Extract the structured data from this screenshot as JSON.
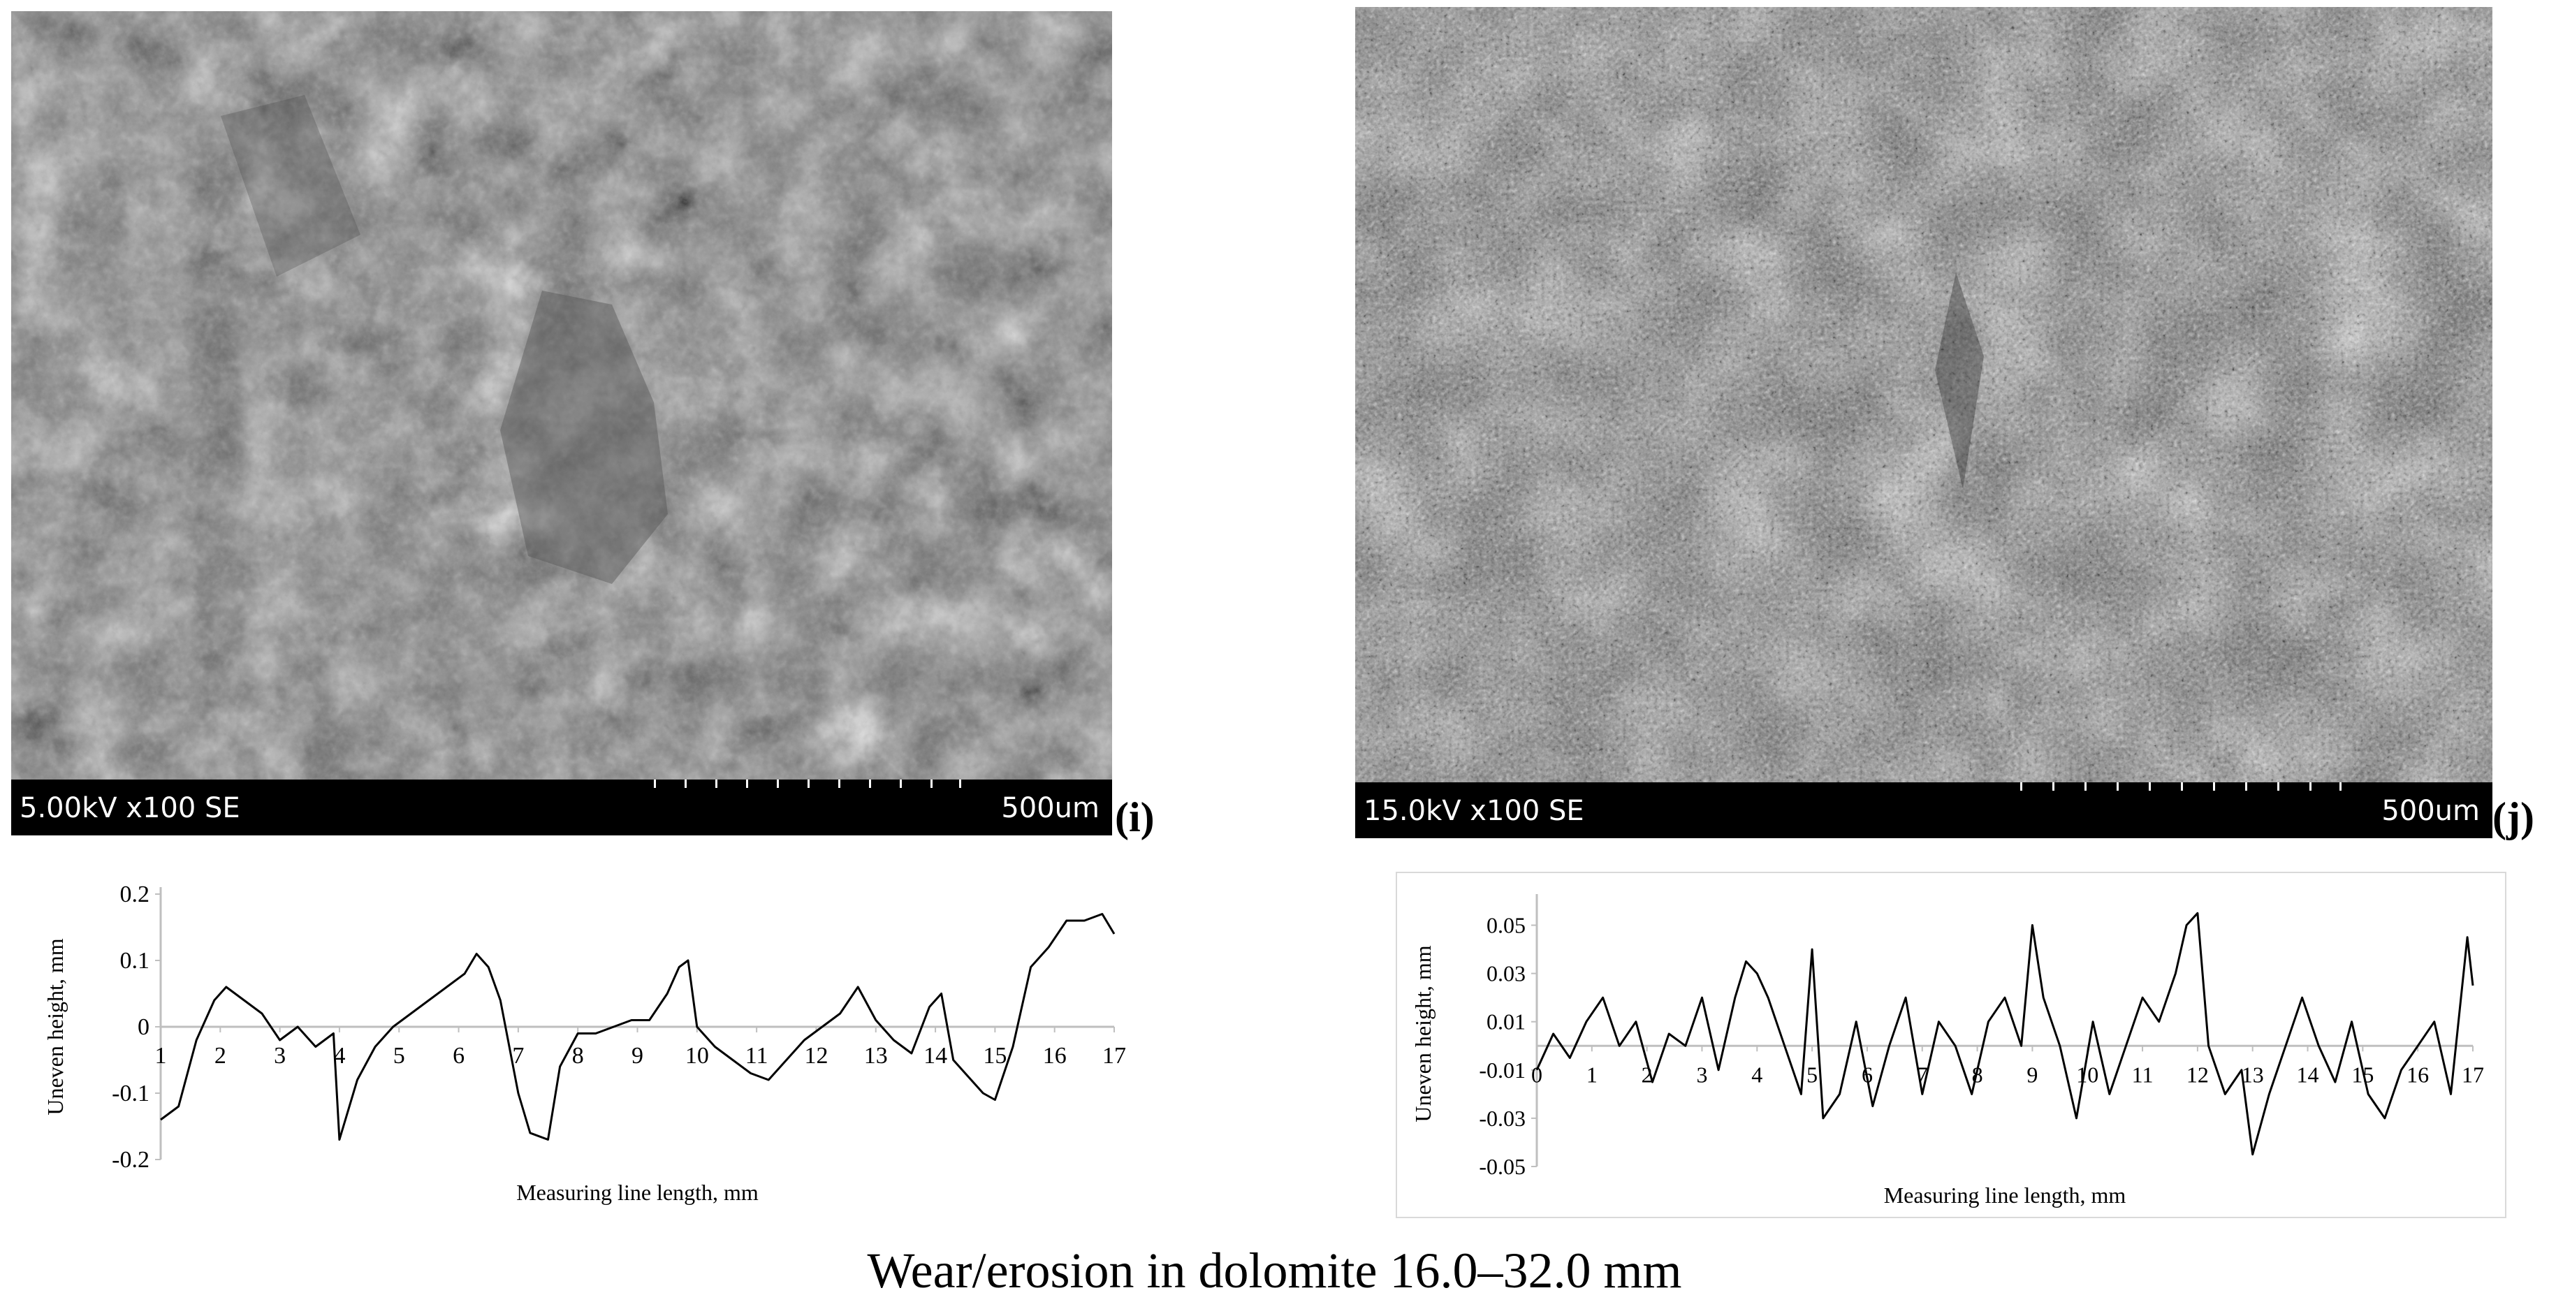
{
  "panels": [
    {
      "id": "i",
      "label_text": "(i)",
      "sem": {
        "params": "5.00kV x100 SE",
        "scale": "500um"
      },
      "chart_data": {
        "type": "line",
        "ylabel": "Uneven height, mm",
        "xlabel": "Measuring line length, mm",
        "xlim": [
          1,
          17
        ],
        "ylim": [
          -0.2,
          0.2
        ],
        "xticks": [
          1,
          2,
          3,
          4,
          5,
          6,
          7,
          8,
          9,
          10,
          11,
          12,
          13,
          14,
          15,
          16,
          17
        ],
        "yticks": [
          -0.2,
          -0.1,
          0,
          0.1,
          0.2
        ],
        "ytick_labels": [
          "-0.2",
          "-0.1",
          "0",
          "0.1",
          "0.2"
        ],
        "grid": false,
        "series": [
          {
            "x": [
              1.0,
              1.3,
              1.6,
              1.9,
              2.1,
              2.4,
              2.7,
              3.0,
              3.3,
              3.6,
              3.9,
              4.0,
              4.3,
              4.6,
              4.9,
              5.2,
              5.5,
              5.8,
              6.1,
              6.3,
              6.5,
              6.7,
              7.0,
              7.2,
              7.5,
              7.7,
              8.0,
              8.3,
              8.6,
              8.9,
              9.2,
              9.5,
              9.7,
              9.85,
              10.0,
              10.3,
              10.6,
              10.9,
              11.2,
              11.5,
              11.8,
              12.1,
              12.4,
              12.7,
              13.0,
              13.3,
              13.6,
              13.9,
              14.1,
              14.3,
              14.5,
              14.8,
              15.0,
              15.3,
              15.6,
              15.9,
              16.2,
              16.5,
              16.8,
              17.0
            ],
            "y": [
              -0.14,
              -0.12,
              -0.02,
              0.04,
              0.06,
              0.04,
              0.02,
              -0.02,
              0.0,
              -0.03,
              -0.01,
              -0.17,
              -0.08,
              -0.03,
              0.0,
              0.02,
              0.04,
              0.06,
              0.08,
              0.11,
              0.09,
              0.04,
              -0.1,
              -0.16,
              -0.17,
              -0.06,
              -0.01,
              -0.01,
              0.0,
              0.01,
              0.01,
              0.05,
              0.09,
              0.1,
              0.0,
              -0.03,
              -0.05,
              -0.07,
              -0.08,
              -0.05,
              -0.02,
              0.0,
              0.02,
              0.06,
              0.01,
              -0.02,
              -0.04,
              0.03,
              0.05,
              -0.05,
              -0.07,
              -0.1,
              -0.11,
              -0.03,
              0.09,
              0.12,
              0.16,
              0.16,
              0.17,
              0.14
            ]
          }
        ]
      }
    },
    {
      "id": "j",
      "label_text": "(j)",
      "sem": {
        "params": "15.0kV x100 SE",
        "scale": "500um"
      },
      "chart_data": {
        "type": "line",
        "ylabel": "Uneven height, mm",
        "xlabel": "Measuring line length, mm",
        "xlim": [
          0,
          17
        ],
        "ylim": [
          -0.05,
          0.06
        ],
        "xticks": [
          0,
          1,
          2,
          3,
          4,
          5,
          6,
          7,
          8,
          9,
          10,
          11,
          12,
          13,
          14,
          15,
          16,
          17
        ],
        "yticks": [
          -0.05,
          -0.03,
          -0.01,
          0.01,
          0.03,
          0.05
        ],
        "ytick_labels": [
          "-0.05",
          "-0.03",
          "-0.01",
          "0.01",
          "0.03",
          "0.05"
        ],
        "grid": false,
        "series": [
          {
            "x": [
              0.0,
              0.3,
              0.6,
              0.9,
              1.2,
              1.5,
              1.8,
              2.1,
              2.4,
              2.7,
              3.0,
              3.3,
              3.6,
              3.8,
              4.0,
              4.2,
              4.5,
              4.8,
              5.0,
              5.2,
              5.5,
              5.8,
              6.1,
              6.4,
              6.7,
              7.0,
              7.3,
              7.6,
              7.9,
              8.2,
              8.5,
              8.8,
              9.0,
              9.2,
              9.5,
              9.8,
              10.1,
              10.4,
              10.7,
              11.0,
              11.3,
              11.6,
              11.8,
              12.0,
              12.2,
              12.5,
              12.8,
              13.0,
              13.3,
              13.6,
              13.9,
              14.2,
              14.5,
              14.8,
              15.1,
              15.4,
              15.7,
              16.0,
              16.3,
              16.6,
              16.9,
              17.0
            ],
            "y": [
              -0.01,
              0.005,
              -0.005,
              0.01,
              0.02,
              0.0,
              0.01,
              -0.015,
              0.005,
              0.0,
              0.02,
              -0.01,
              0.02,
              0.035,
              0.03,
              0.02,
              0.0,
              -0.02,
              0.04,
              -0.03,
              -0.02,
              0.01,
              -0.025,
              0.0,
              0.02,
              -0.02,
              0.01,
              0.0,
              -0.02,
              0.01,
              0.02,
              0.0,
              0.05,
              0.02,
              0.0,
              -0.03,
              0.01,
              -0.02,
              0.0,
              0.02,
              0.01,
              0.03,
              0.05,
              0.055,
              0.0,
              -0.02,
              -0.01,
              -0.045,
              -0.02,
              0.0,
              0.02,
              0.0,
              -0.015,
              0.01,
              -0.02,
              -0.03,
              -0.01,
              0.0,
              0.01,
              -0.02,
              0.045,
              0.025
            ]
          }
        ]
      }
    }
  ],
  "caption": "Wear/erosion in dolomite 16.0–32.0 mm"
}
